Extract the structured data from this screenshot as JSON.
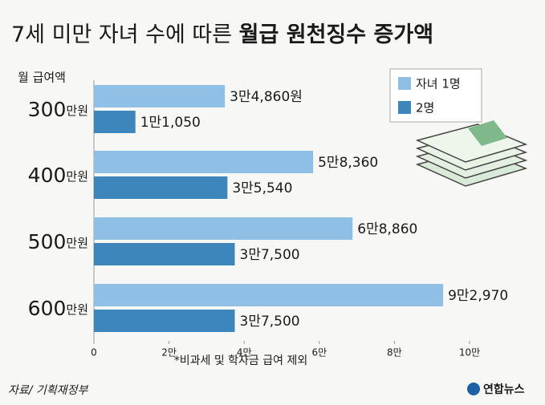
{
  "chart_data": {
    "type": "bar",
    "orientation": "horizontal",
    "title": "7세 미만 자녀 수에 따른",
    "title_emphasis": "월급 원천징수 증가액",
    "y_label": "월 급여액",
    "categories": [
      "300",
      "400",
      "500",
      "600"
    ],
    "category_unit": "만원",
    "series": [
      {
        "name": "자녀 1명",
        "color": "#8fbfe4",
        "values": [
          34860,
          58360,
          68860,
          92970
        ],
        "value_labels": [
          "3만4,860원",
          "5만8,360",
          "6만8,860",
          "9만2,970"
        ]
      },
      {
        "name": "2명",
        "color": "#3d86bb",
        "values": [
          11050,
          35540,
          37500,
          37500
        ],
        "value_labels": [
          "1만1,050",
          "3만5,540",
          "3만7,500",
          "3만7,500"
        ]
      }
    ],
    "xlim": [
      0,
      100000
    ],
    "xticks": [
      0,
      {
        "value": 20000,
        "label": "2만"
      },
      {
        "value": 40000,
        "label": "4만"
      },
      {
        "value": 60000,
        "label": "6만"
      },
      {
        "value": 80000,
        "label": "8만"
      },
      {
        "value": 100000,
        "label": "10만"
      }
    ],
    "note": "*비과세 및 학자금 급여 제외",
    "source": "자료/ 기획재정부",
    "logo": "연합뉴스"
  }
}
